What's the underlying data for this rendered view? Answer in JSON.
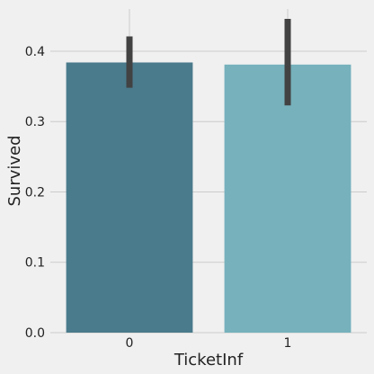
{
  "chart_data": {
    "type": "bar",
    "xlabel": "TicketInf",
    "ylabel": "Survived",
    "categories": [
      "0",
      "1"
    ],
    "values": [
      0.384,
      0.381
    ],
    "error_low": [
      0.348,
      0.323
    ],
    "error_high": [
      0.421,
      0.446
    ],
    "bar_colors": [
      "#4a7b8c",
      "#76b1bc"
    ],
    "error_color": "#424242",
    "ylim": [
      0,
      0.46
    ],
    "yticks": [
      0.0,
      0.1,
      0.2,
      0.3,
      0.4
    ],
    "ytick_labels": [
      "0.0",
      "0.1",
      "0.2",
      "0.3",
      "0.4"
    ],
    "grid": "horizontal",
    "background": "#f0f0f0",
    "grid_color": "#cbcbcb"
  }
}
